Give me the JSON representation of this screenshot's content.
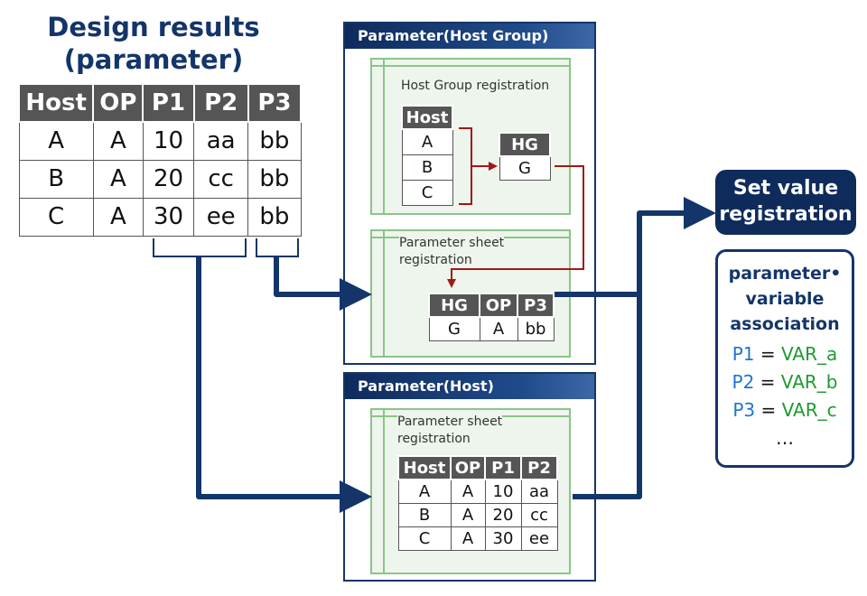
{
  "title_line1": "Design results",
  "title_line2": "(parameter)",
  "design_table": {
    "headers": [
      "Host",
      "OP",
      "P1",
      "P2",
      "P3"
    ],
    "rows": [
      [
        "A",
        "A",
        "10",
        "aa",
        "bb"
      ],
      [
        "B",
        "A",
        "20",
        "cc",
        "bb"
      ],
      [
        "C",
        "A",
        "30",
        "ee",
        "bb"
      ]
    ]
  },
  "host_group_panel": {
    "title": "Parameter(Host Group)",
    "registration_label": "Host Group registration",
    "host_table": {
      "header": "Host",
      "rows": [
        "A",
        "B",
        "C"
      ]
    },
    "hg_table": {
      "header": "HG",
      "value": "G"
    },
    "sheet_label_line1": "Parameter sheet",
    "sheet_label_line2": "registration",
    "sheet_table": {
      "headers": [
        "HG",
        "OP",
        "P3"
      ],
      "row": [
        "G",
        "A",
        "bb"
      ]
    }
  },
  "host_panel": {
    "title": "Parameter(Host)",
    "sheet_label_line1": "Parameter sheet",
    "sheet_label_line2": "registration",
    "sheet_table": {
      "headers": [
        "Host",
        "OP",
        "P1",
        "P2"
      ],
      "rows": [
        [
          "A",
          "A",
          "10",
          "aa"
        ],
        [
          "B",
          "A",
          "20",
          "cc"
        ],
        [
          "C",
          "A",
          "30",
          "ee"
        ]
      ]
    }
  },
  "set_value": {
    "line1": "Set value",
    "line2": "registration"
  },
  "association": {
    "heading_line1": "parameter•",
    "heading_line2": "variable",
    "heading_line3": "association",
    "mappings": [
      {
        "param": "P1",
        "eq": "=",
        "var": "VAR_a"
      },
      {
        "param": "P2",
        "eq": "=",
        "var": "VAR_b"
      },
      {
        "param": "P3",
        "eq": "=",
        "var": "VAR_c"
      }
    ],
    "ellipsis": "…"
  },
  "colors": {
    "navy": "#14356a",
    "arrow_red": "#a01818",
    "panel_green": "#8cc48a",
    "header_gray": "#555555",
    "param_blue": "#1e74d6",
    "var_green": "#1e9a2f"
  }
}
